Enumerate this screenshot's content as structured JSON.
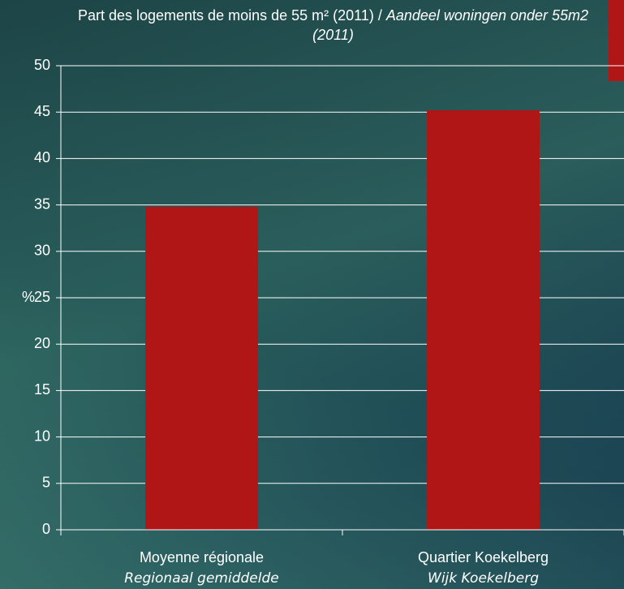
{
  "chart_data": {
    "type": "bar",
    "title": "Part des logements de moins de 55 m² (2011) /",
    "title_nl": "Aandeel woningen onder 55m2 (2011)",
    "y_label": "%",
    "categories": [
      "Moyenne régionale",
      "Quartier Koekelberg"
    ],
    "categories_nl": [
      "Regionaal gemiddelde",
      "Wijk Koekelberg"
    ],
    "values": [
      34.8,
      45.2
    ],
    "color": "#b01616",
    "ylim": [
      0,
      50
    ],
    "yticks": [
      0,
      5,
      10,
      15,
      20,
      25,
      30,
      35,
      40,
      45,
      50
    ],
    "grid": true
  }
}
